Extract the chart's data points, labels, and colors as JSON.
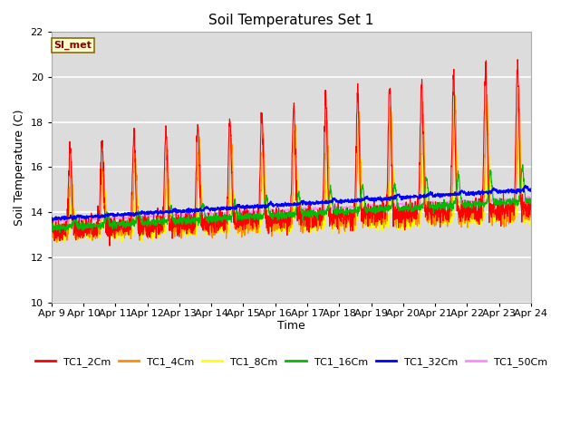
{
  "title": "Soil Temperatures Set 1",
  "xlabel": "Time",
  "ylabel": "Soil Temperature (C)",
  "ylim": [
    10,
    22
  ],
  "background_color": "#e8e8e8",
  "plot_background": "#dcdcdc",
  "annotation_text": "SI_met",
  "annotation_facecolor": "#ffffcc",
  "annotation_edgecolor": "#8b6914",
  "annotation_textcolor": "#8b0000",
  "x_tick_labels": [
    "Apr 9",
    "Apr 10",
    "Apr 11",
    "Apr 12",
    "Apr 13",
    "Apr 14",
    "Apr 15",
    "Apr 16",
    "Apr 17",
    "Apr 18",
    "Apr 19",
    "Apr 20",
    "Apr 21",
    "Apr 22",
    "Apr 23",
    "Apr 24"
  ],
  "series_colors": {
    "TC1_2Cm": "#ff0000",
    "TC1_4Cm": "#ff8c00",
    "TC1_8Cm": "#ffff00",
    "TC1_16Cm": "#00bb00",
    "TC1_32Cm": "#0000ff",
    "TC1_50Cm": "#ff88ff"
  },
  "legend_colors": [
    "#ff0000",
    "#ff8c00",
    "#ffff00",
    "#00bb00",
    "#0000ff",
    "#ff88ff"
  ],
  "legend_labels": [
    "TC1_2Cm",
    "TC1_4Cm",
    "TC1_8Cm",
    "TC1_16Cm",
    "TC1_32Cm",
    "TC1_50Cm"
  ],
  "n_days": 15,
  "pts_per_day": 144,
  "base_temp": 13.7,
  "trend_total": 1.3,
  "grid_color": "#ffffff",
  "spine_color": "#aaaaaa"
}
